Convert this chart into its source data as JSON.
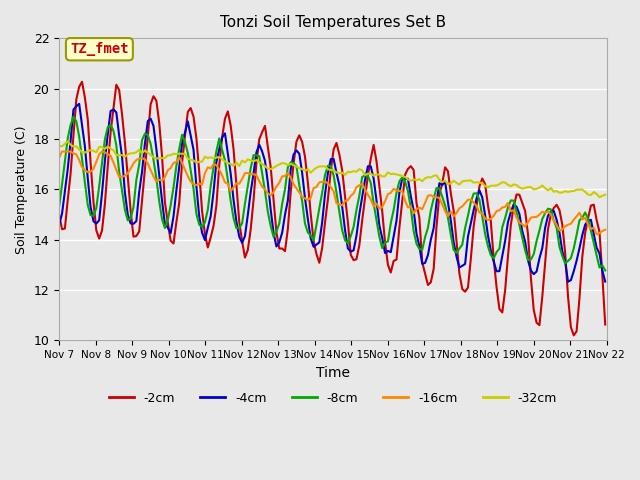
{
  "title": "Tonzi Soil Temperatures Set B",
  "xlabel": "Time",
  "ylabel": "Soil Temperature (C)",
  "ylim": [
    10,
    22
  ],
  "background_color": "#e8e8e8",
  "plot_bg_color": "#e8e8e8",
  "annotation_text": "TZ_fmet",
  "annotation_box_color": "#ffffcc",
  "annotation_border_color": "#999900",
  "annotation_text_color": "#cc0000",
  "series_colors": {
    "-2cm": "#cc0000",
    "-4cm": "#0000cc",
    "-8cm": "#00aa00",
    "-16cm": "#ff8800",
    "-32cm": "#cccc00"
  },
  "series_linewidth": 1.5,
  "xtick_labels": [
    "Nov 7",
    "Nov 8",
    "Nov 9",
    "Nov 10",
    "Nov 11",
    "Nov 12",
    "Nov 13",
    "Nov 14",
    "Nov 15",
    "Nov 16",
    "Nov 17",
    "Nov 18",
    "Nov 19",
    "Nov 20",
    "Nov 21",
    "Nov 22"
  ],
  "ytick_values": [
    10,
    12,
    14,
    16,
    18,
    20,
    22
  ],
  "grid_color": "#ffffff",
  "legend_entries": [
    "-2cm",
    "-4cm",
    "-8cm",
    "-16cm",
    "-32cm"
  ]
}
